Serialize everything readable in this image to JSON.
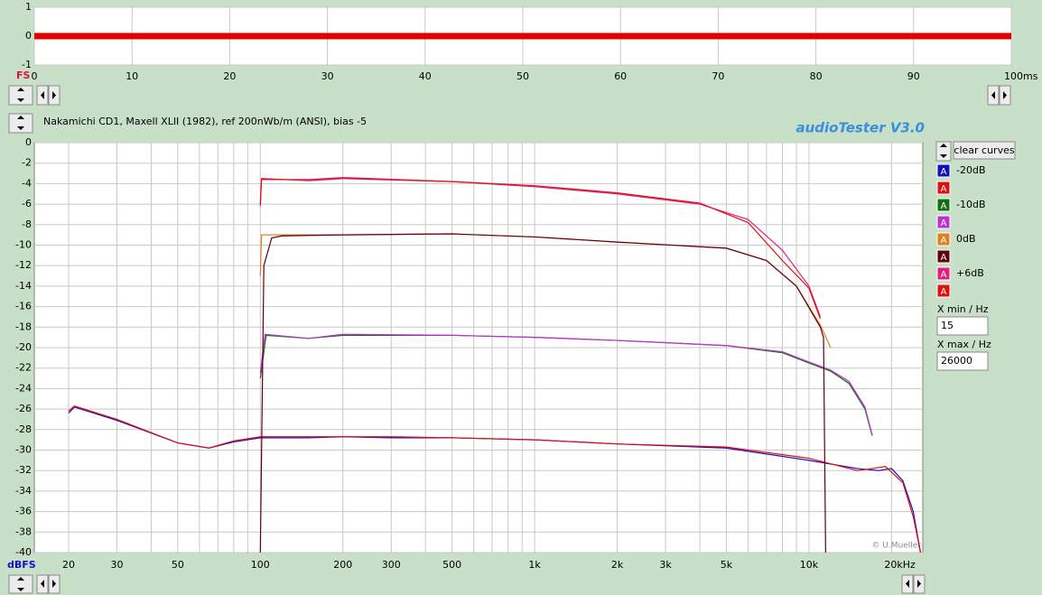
{
  "chart_data": [
    {
      "type": "line",
      "y_label": "FS",
      "xlim": [
        0,
        100
      ],
      "xticks": [
        0,
        10,
        20,
        30,
        40,
        50,
        60,
        70,
        80,
        90,
        {
          "value": 100,
          "label": "100ms"
        }
      ],
      "ylim": [
        -1,
        1
      ],
      "yticks": [
        1,
        0,
        -1
      ],
      "grid": true,
      "series": [
        {
          "color": "#e00000",
          "x": [
            0,
            100
          ],
          "values": [
            0,
            0
          ]
        }
      ]
    },
    {
      "type": "line",
      "title": "Nakamichi CD1, Maxell XLII (1982), ref 200nWb/m (ANSI), bias -5",
      "y_label": "dBFS",
      "xscale": "log",
      "xlim": [
        15,
        26000
      ],
      "xticks": [
        20,
        30,
        50,
        100,
        200,
        300,
        500,
        {
          "value": 1000,
          "label": "1k"
        },
        {
          "value": 2000,
          "label": "2k"
        },
        {
          "value": 3000,
          "label": "3k"
        },
        {
          "value": 5000,
          "label": "5k"
        },
        {
          "value": 10000,
          "label": "10k"
        },
        {
          "value": 20000,
          "label": "20kHz"
        }
      ],
      "xgrid": [
        20,
        30,
        40,
        50,
        60,
        70,
        80,
        90,
        100,
        200,
        300,
        400,
        500,
        600,
        700,
        800,
        900,
        1000,
        2000,
        3000,
        4000,
        5000,
        6000,
        7000,
        8000,
        9000,
        10000,
        20000
      ],
      "ylim": [
        -40,
        0
      ],
      "yticks": [
        0,
        -2,
        -4,
        -6,
        -8,
        -10,
        -12,
        -14,
        -16,
        -18,
        -20,
        -22,
        -24,
        -26,
        -28,
        -30,
        -32,
        -34,
        -36,
        -38,
        -40
      ],
      "grid": true,
      "watermark": "© U.Mueller",
      "series": [
        {
          "name": "-20dB",
          "color": "#1010c0",
          "x": [
            20,
            21,
            30,
            50,
            65,
            80,
            100,
            150,
            200,
            300,
            500,
            1000,
            2000,
            5000,
            10000,
            15000,
            18000,
            20000,
            22000,
            24000,
            25500
          ],
          "values": [
            -26.4,
            -25.8,
            -27.1,
            -29.3,
            -29.8,
            -29.2,
            -28.8,
            -28.8,
            -28.7,
            -28.8,
            -28.8,
            -29,
            -29.4,
            -29.8,
            -31,
            -31.8,
            -32,
            -31.8,
            -33,
            -36,
            -40
          ]
        },
        {
          "color": "#e01010",
          "x": [
            20,
            21,
            30,
            50,
            65,
            80,
            100,
            150,
            200,
            300,
            500,
            1000,
            2000,
            5000,
            10000,
            15000,
            17000,
            19000,
            22000,
            24000,
            25500
          ],
          "values": [
            -26.2,
            -25.7,
            -27,
            -29.3,
            -29.8,
            -29.1,
            -28.7,
            -28.7,
            -28.7,
            -28.7,
            -28.8,
            -29,
            -29.4,
            -29.7,
            -30.8,
            -32,
            -31.8,
            -31.6,
            -33.2,
            -36.5,
            -40
          ]
        },
        {
          "name": "-10dB",
          "color": "#107010",
          "x": [
            100,
            105,
            150,
            200,
            500,
            1000,
            2000,
            5000,
            8000,
            10000,
            12000,
            14000,
            16000,
            17000
          ],
          "values": [
            -23,
            -18.8,
            -19.1,
            -18.8,
            -18.8,
            -19,
            -19.3,
            -19.8,
            -20.5,
            -21.5,
            -22.3,
            -23.5,
            -26,
            -28.6
          ]
        },
        {
          "color": "#c030d0",
          "x": [
            100,
            104,
            150,
            200,
            500,
            1000,
            2000,
            5000,
            8000,
            10000,
            12000,
            14000,
            16000,
            17000
          ],
          "values": [
            -22.5,
            -18.7,
            -19.1,
            -18.7,
            -18.8,
            -19,
            -19.3,
            -19.8,
            -20.4,
            -21.4,
            -22.2,
            -23.3,
            -25.8,
            -28.5
          ]
        },
        {
          "name": "0dB",
          "color": "#e08020",
          "x": [
            100,
            101,
            120,
            200,
            500,
            1000,
            2000,
            5000,
            7000,
            9000,
            11000,
            12000
          ],
          "values": [
            -13,
            -9,
            -9,
            -9,
            -8.9,
            -9.2,
            -9.7,
            -10.3,
            -11.5,
            -14,
            -17.8,
            -20
          ]
        },
        {
          "color": "#600010",
          "x": [
            100,
            103,
            110,
            120,
            200,
            500,
            1000,
            2000,
            5000,
            7000,
            9000,
            11000,
            11300,
            11500
          ],
          "values": [
            -40,
            -12,
            -9.3,
            -9.1,
            -9,
            -8.9,
            -9.2,
            -9.7,
            -10.3,
            -11.5,
            -14,
            -18,
            -19,
            -40
          ]
        },
        {
          "name": "+6dB",
          "color": "#e02080",
          "x": [
            100,
            101,
            150,
            200,
            500,
            1000,
            2000,
            4000,
            6000,
            8000,
            10000,
            11000
          ],
          "values": [
            -6.2,
            -3.6,
            -3.6,
            -3.4,
            -3.8,
            -4.3,
            -5,
            -6,
            -7.5,
            -10.5,
            -14,
            -17
          ]
        },
        {
          "color": "#e01010",
          "x": [
            100,
            101,
            150,
            200,
            500,
            1000,
            2000,
            4000,
            6000,
            8000,
            10000,
            11000
          ],
          "values": [
            -6,
            -3.5,
            -3.7,
            -3.5,
            -3.8,
            -4.2,
            -4.9,
            -5.9,
            -7.8,
            -11.5,
            -14.2,
            -17.2
          ]
        }
      ]
    }
  ],
  "ui": {
    "app_name": "audioTester  V3.0",
    "clear_button": "clear curves",
    "legend_icon": "A",
    "xmin_label": "X min / Hz",
    "xmax_label": "X max / Hz"
  }
}
